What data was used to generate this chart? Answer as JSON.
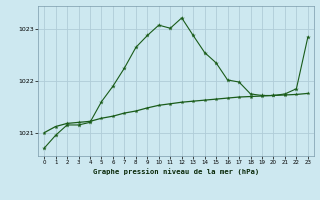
{
  "title": "Graphe pression niveau de la mer (hPa)",
  "bg_color": "#cde8f0",
  "grid_color": "#b0ccd8",
  "line_color": "#1a5c1a",
  "xlim": [
    -0.5,
    23.5
  ],
  "ylim": [
    1020.55,
    1023.45
  ],
  "yticks": [
    1021,
    1022,
    1023
  ],
  "xticks": [
    0,
    1,
    2,
    3,
    4,
    5,
    6,
    7,
    8,
    9,
    10,
    11,
    12,
    13,
    14,
    15,
    16,
    17,
    18,
    19,
    20,
    21,
    22,
    23
  ],
  "series1_x": [
    0,
    1,
    2,
    3,
    4,
    5,
    6,
    7,
    8,
    9,
    10,
    11,
    12,
    13,
    14,
    15,
    16,
    17,
    18,
    19,
    20,
    21,
    22,
    23
  ],
  "series1_y": [
    1020.7,
    1020.95,
    1021.15,
    1021.15,
    1021.2,
    1021.6,
    1021.9,
    1022.25,
    1022.65,
    1022.88,
    1023.08,
    1023.02,
    1023.22,
    1022.88,
    1022.55,
    1022.35,
    1022.02,
    1021.98,
    1021.75,
    1021.72,
    1021.72,
    1021.75,
    1021.85,
    1022.85
  ],
  "series2_x": [
    0,
    1,
    2,
    3,
    4,
    5,
    6,
    7,
    8,
    9,
    10,
    11,
    12,
    13,
    14,
    15,
    16,
    17,
    18,
    19,
    20,
    21,
    22,
    23
  ],
  "series2_y": [
    1021.0,
    1021.12,
    1021.18,
    1021.2,
    1021.22,
    1021.28,
    1021.32,
    1021.38,
    1021.42,
    1021.48,
    1021.53,
    1021.56,
    1021.59,
    1021.61,
    1021.63,
    1021.65,
    1021.67,
    1021.69,
    1021.7,
    1021.71,
    1021.72,
    1021.73,
    1021.74,
    1021.76
  ]
}
